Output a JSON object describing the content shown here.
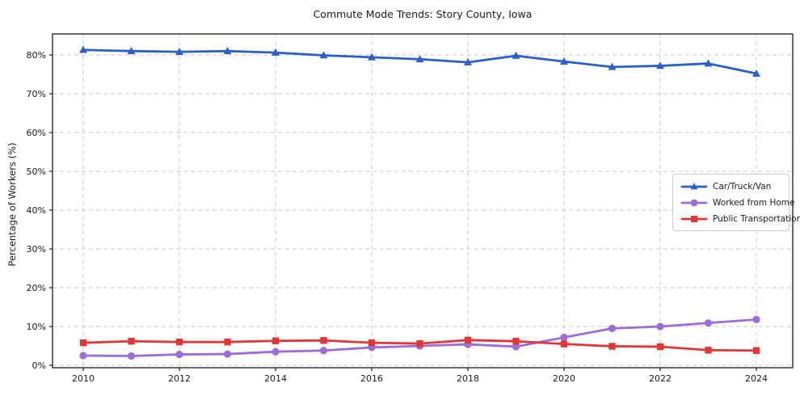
{
  "figure": {
    "title": "Commute Mode Trends: Story County, Iowa"
  },
  "chart_data": {
    "type": "line",
    "title": "Commute Mode Trends: Story County, Iowa",
    "xlabel": "",
    "ylabel": "Percentage of Workers (%)",
    "x": [
      2010,
      2011,
      2012,
      2013,
      2014,
      2015,
      2016,
      2017,
      2018,
      2019,
      2020,
      2021,
      2022,
      2023,
      2024
    ],
    "xtick_labels": [
      "2010",
      "2012",
      "2014",
      "2016",
      "2018",
      "2020",
      "2022",
      "2024"
    ],
    "xticks": [
      2010,
      2012,
      2014,
      2016,
      2018,
      2020,
      2022,
      2024
    ],
    "ytick_labels": [
      "0%",
      "10%",
      "20%",
      "30%",
      "40%",
      "50%",
      "60%",
      "70%",
      "80%"
    ],
    "yticks": [
      0,
      10,
      20,
      30,
      40,
      50,
      60,
      70,
      80
    ],
    "xlim": [
      2009.35,
      2024.75
    ],
    "ylim": [
      -0.6,
      85.4
    ],
    "grid": true,
    "grid_style": "dashed",
    "legend_position": "center right",
    "series": [
      {
        "name": "Car/Truck/Van",
        "color": "#2b60c8",
        "marker": "triangle",
        "values": [
          81.3,
          81.0,
          80.8,
          81.0,
          80.6,
          79.9,
          79.4,
          78.9,
          78.1,
          79.8,
          78.3,
          76.9,
          77.2,
          77.8,
          75.2
        ]
      },
      {
        "name": "Worked from Home",
        "color": "#9a6dd7",
        "marker": "circle",
        "values": [
          2.5,
          2.4,
          2.8,
          2.9,
          3.5,
          3.8,
          4.6,
          5.0,
          5.4,
          4.8,
          7.2,
          9.5,
          10.0,
          10.9,
          11.8
        ]
      },
      {
        "name": "Public Transportation",
        "color": "#e23636",
        "marker": "square",
        "values": [
          5.8,
          6.2,
          6.0,
          6.0,
          6.3,
          6.4,
          5.8,
          5.6,
          6.5,
          6.2,
          5.5,
          4.9,
          4.8,
          3.9,
          3.8
        ]
      }
    ],
    "colors": {
      "grid": "#c9c9c9",
      "spine": "#1a1a1a",
      "tick_text": "#1a1a1a",
      "background": "#ffffff",
      "legend_border": "#cccccc"
    }
  }
}
